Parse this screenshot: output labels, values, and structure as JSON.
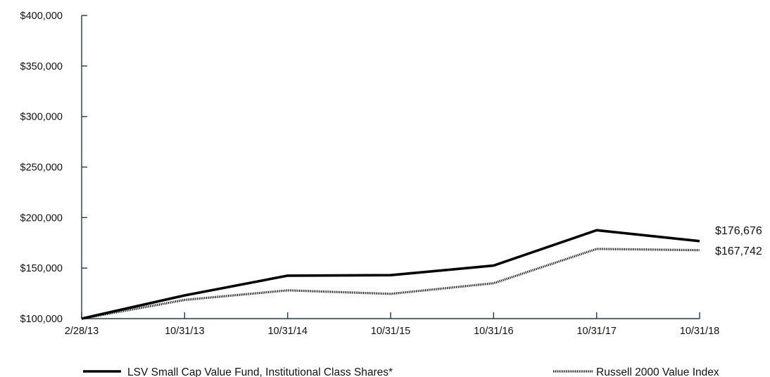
{
  "chart_data": {
    "type": "line",
    "categories": [
      "2/28/13",
      "10/31/13",
      "10/31/14",
      "10/31/15",
      "10/31/16",
      "10/31/17",
      "10/31/18"
    ],
    "ylim": [
      100000,
      400000
    ],
    "yticks": [
      100000,
      150000,
      200000,
      250000,
      300000,
      350000,
      400000
    ],
    "ytick_labels": [
      "$100,000",
      "$150,000",
      "$200,000",
      "$250,000",
      "$300,000",
      "$350,000",
      "$400,000"
    ],
    "grid": false,
    "legend_position": "bottom",
    "series": [
      {
        "name": "LSV Small Cap Value Fund, Institutional Class Shares*",
        "style": "solid",
        "color": "#000000",
        "values": [
          100000,
          123000,
          142500,
          143000,
          152500,
          187500,
          176676
        ],
        "end_label": "$176,676"
      },
      {
        "name": "Russell 2000 Value Index",
        "style": "dotted",
        "color": "#000000",
        "values": [
          100000,
          118500,
          128000,
          124500,
          135000,
          169000,
          167742
        ],
        "end_label": "$167,742"
      }
    ]
  }
}
